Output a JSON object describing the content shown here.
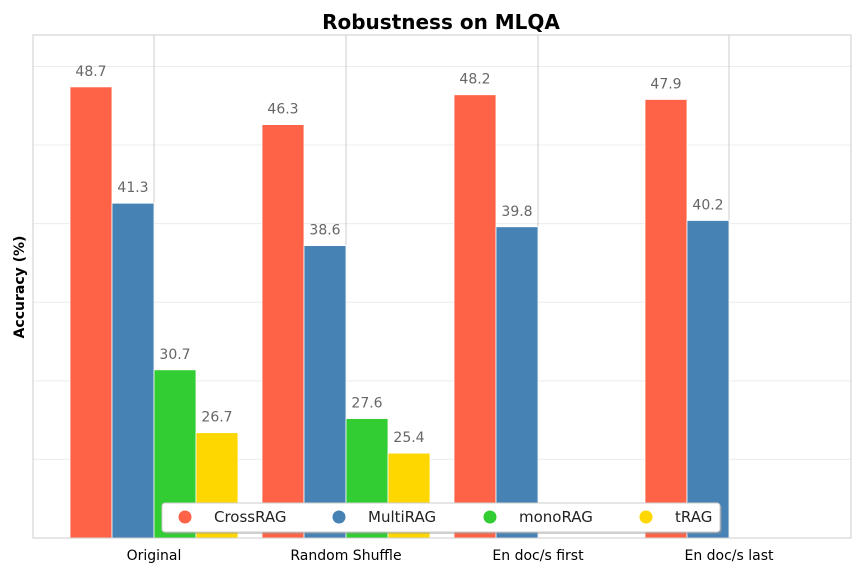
{
  "chart_data": {
    "type": "bar",
    "title": "Robustness on MLQA",
    "xlabel": "",
    "ylabel": "Accuracy (%)",
    "categories": [
      "Original",
      "Random Shuffle",
      "En doc/s first",
      "En doc/s last"
    ],
    "series": [
      {
        "name": "CrossRAG",
        "color": "#ff6347",
        "values": [
          48.7,
          46.3,
          48.2,
          47.9
        ],
        "labels": [
          "48.7",
          "46.3",
          "48.2",
          "47.9"
        ]
      },
      {
        "name": "MultiRAG",
        "color": "#4682b4",
        "values": [
          41.3,
          38.6,
          39.8,
          40.2
        ],
        "labels": [
          "41.3",
          "38.6",
          "39.8",
          "40.2"
        ]
      },
      {
        "name": "monoRAG",
        "color": "#32cd32",
        "values": [
          30.7,
          27.6,
          null,
          null
        ],
        "labels": [
          "30.7",
          "27.6",
          "",
          ""
        ]
      },
      {
        "name": "tRAG",
        "color": "#ffd700",
        "values": [
          26.7,
          25.4,
          null,
          null
        ],
        "labels": [
          "26.7",
          "25.4",
          "",
          ""
        ]
      }
    ],
    "ylim": [
      20,
      52
    ],
    "grid": true,
    "legend": "bottom-center"
  }
}
